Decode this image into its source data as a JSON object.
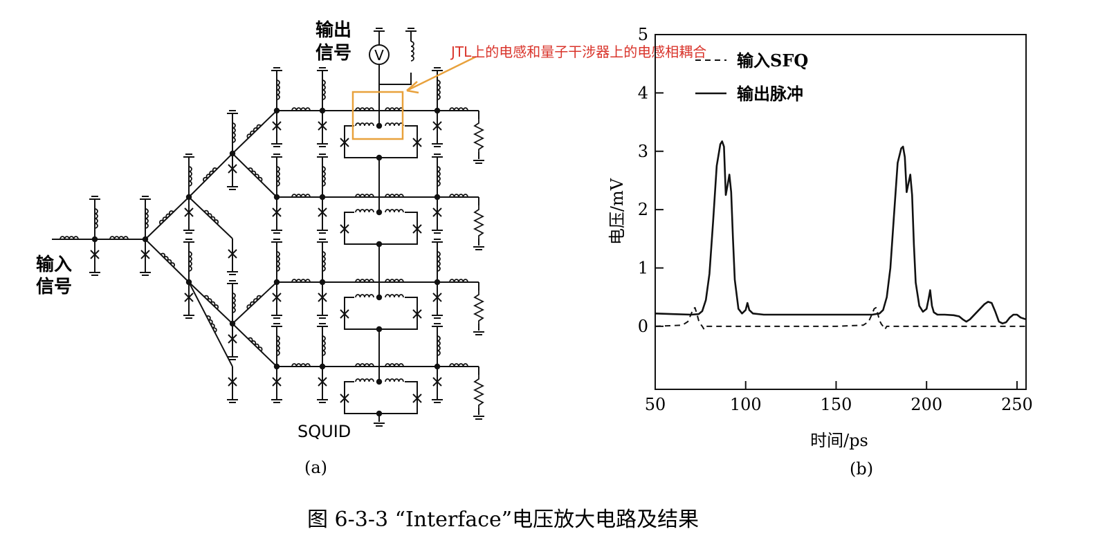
{
  "panel_a": {
    "input_label": [
      "输入",
      "信号"
    ],
    "output_label": [
      "输出",
      "信号"
    ],
    "voltmeter_symbol": "V",
    "squid_label": "SQUID",
    "caption": "(a)",
    "annotation": {
      "text": "JTL上的电感和量子干涉器上的电感相耦合",
      "color": "#d9342b",
      "box_color": "#e8a13c"
    }
  },
  "panel_b": {
    "caption": "(b)"
  },
  "figure_caption": "图 6-3-3   “Interface”电压放大电路及结果",
  "chart_data": {
    "type": "line",
    "xlabel": "时间/ps",
    "ylabel": "电压/mV",
    "xlim": [
      50,
      255
    ],
    "ylim": [
      -1.08,
      5
    ],
    "xticks": [
      50,
      100,
      150,
      200,
      250
    ],
    "yticks": [
      0,
      1,
      2,
      3,
      4,
      5
    ],
    "grid": false,
    "legend_position": "top-left",
    "series": [
      {
        "name": "输入SFQ",
        "style": "dashed",
        "x": [
          50,
          65,
          68,
          70,
          71,
          72,
          73,
          74,
          75,
          76,
          77,
          78,
          80,
          100,
          150,
          165,
          168,
          170,
          171,
          172,
          173,
          174,
          175,
          176,
          177,
          178,
          180,
          200,
          220,
          240,
          255
        ],
        "y": [
          0.0,
          0.02,
          0.08,
          0.22,
          0.3,
          0.32,
          0.22,
          0.1,
          0.04,
          0.0,
          -0.05,
          0.0,
          0.0,
          0.0,
          0.0,
          0.02,
          0.08,
          0.22,
          0.3,
          0.32,
          0.22,
          0.1,
          0.04,
          0.0,
          -0.05,
          0.0,
          0.0,
          0.0,
          0.0,
          0.0,
          0.0
        ]
      },
      {
        "name": "输出脉冲",
        "style": "solid",
        "x": [
          50,
          60,
          70,
          74,
          76,
          78,
          80,
          82,
          84,
          86,
          87,
          88,
          89,
          90,
          91,
          92,
          93,
          94,
          96,
          98,
          100,
          101,
          102,
          104,
          110,
          130,
          150,
          165,
          170,
          174,
          176,
          178,
          180,
          182,
          184,
          186,
          187,
          188,
          189,
          190,
          191,
          192,
          193,
          194,
          196,
          198,
          200,
          201,
          202,
          203,
          204,
          206,
          210,
          215,
          218,
          220,
          222,
          224,
          228,
          232,
          234,
          236,
          238,
          240,
          242,
          244,
          246,
          248,
          250,
          252,
          255
        ],
        "y": [
          0.22,
          0.21,
          0.2,
          0.21,
          0.26,
          0.45,
          0.9,
          1.8,
          2.75,
          3.12,
          3.17,
          3.08,
          2.25,
          2.42,
          2.6,
          2.3,
          1.5,
          0.8,
          0.3,
          0.22,
          0.28,
          0.4,
          0.28,
          0.22,
          0.2,
          0.2,
          0.2,
          0.2,
          0.2,
          0.22,
          0.28,
          0.5,
          1.0,
          1.9,
          2.8,
          3.05,
          3.08,
          2.9,
          2.3,
          2.45,
          2.6,
          2.25,
          1.4,
          0.75,
          0.35,
          0.25,
          0.3,
          0.45,
          0.62,
          0.35,
          0.24,
          0.2,
          0.2,
          0.19,
          0.17,
          0.12,
          0.08,
          0.12,
          0.25,
          0.38,
          0.42,
          0.4,
          0.25,
          0.08,
          0.05,
          0.07,
          0.15,
          0.2,
          0.2,
          0.15,
          0.12
        ]
      }
    ]
  }
}
